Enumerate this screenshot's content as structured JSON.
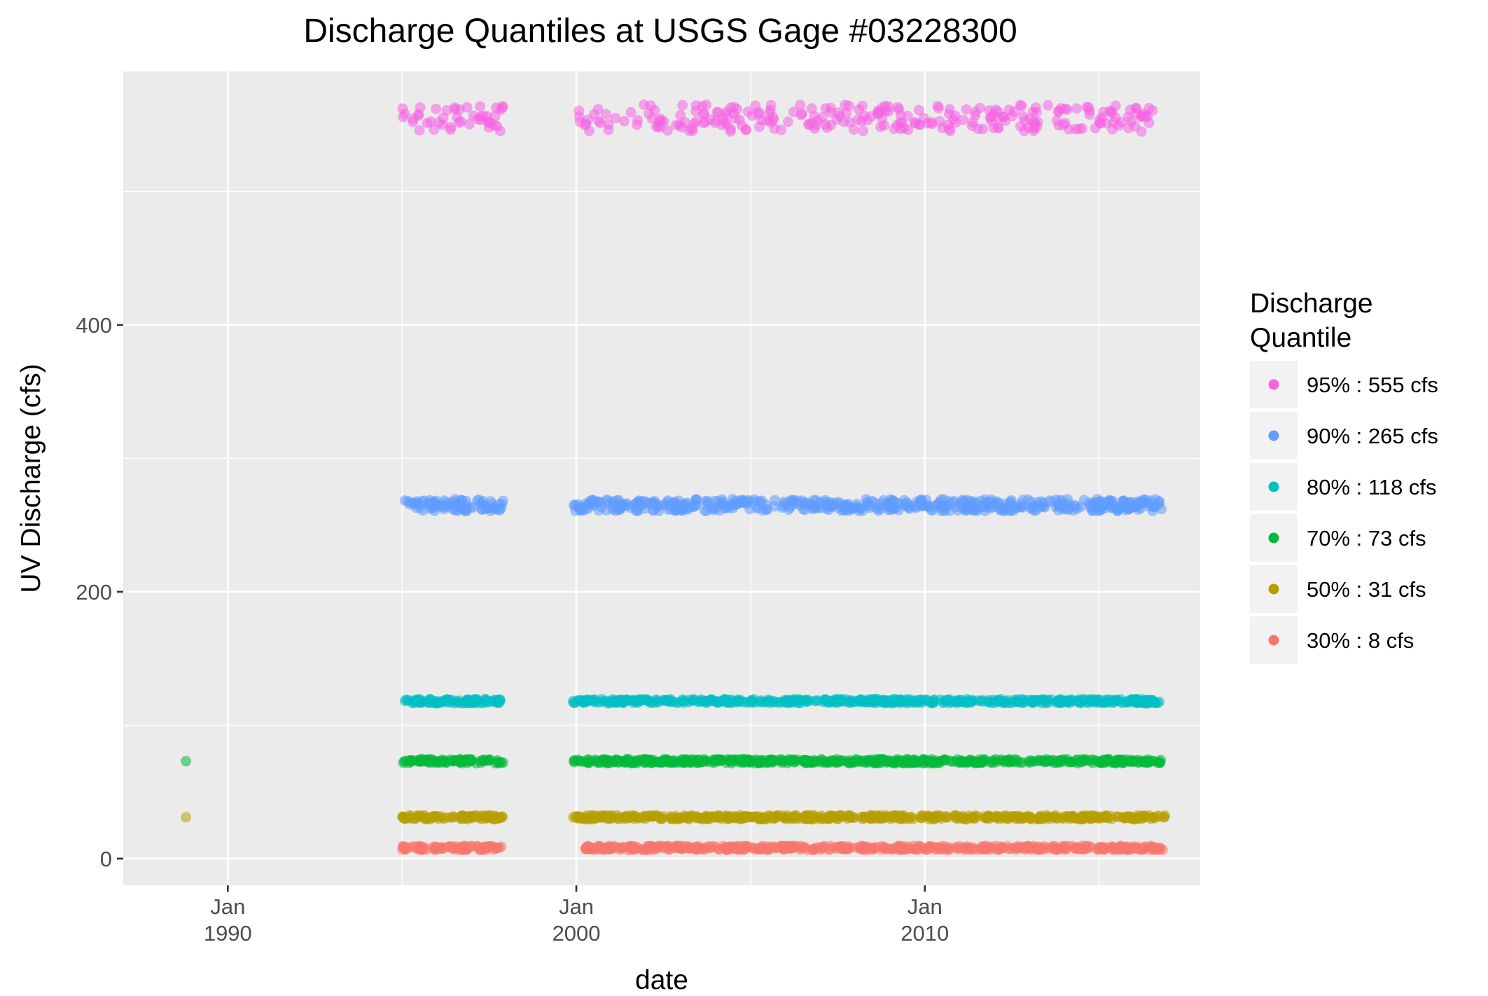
{
  "chart_data": {
    "type": "scatter",
    "title": "Discharge Quantiles at USGS Gage #03228300",
    "xlabel": "date",
    "ylabel": "UV Discharge (cfs)",
    "x_ticks": [
      {
        "line1": "Jan",
        "line2": "1990",
        "value": 1990.0
      },
      {
        "line1": "Jan",
        "line2": "2000",
        "value": 2000.0
      },
      {
        "line1": "Jan",
        "line2": "2010",
        "value": 2010.0
      }
    ],
    "y_ticks": [
      0,
      200,
      400
    ],
    "xlim": [
      1987.0,
      2017.9
    ],
    "ylim": [
      -20,
      590
    ],
    "grid": true,
    "legend": {
      "title_line1": "Discharge",
      "title_line2": "Quantile",
      "position": "right"
    },
    "series": [
      {
        "name": "95% : 555  cfs",
        "color": "#F564E3",
        "value": 555,
        "x_ranges": [
          [
            1995.0,
            1997.9
          ],
          [
            1999.9,
            2016.6
          ]
        ],
        "outliers": []
      },
      {
        "name": "90% : 265  cfs",
        "color": "#619CFF",
        "value": 265,
        "x_ranges": [
          [
            1995.0,
            1997.9
          ],
          [
            1999.9,
            2016.8
          ]
        ],
        "outliers": []
      },
      {
        "name": "80% : 118  cfs",
        "color": "#00BFC4",
        "value": 118,
        "x_ranges": [
          [
            1995.0,
            1997.9
          ],
          [
            1999.9,
            2016.8
          ]
        ],
        "outliers": []
      },
      {
        "name": "70% : 73  cfs",
        "color": "#00BA38",
        "value": 73,
        "x_ranges": [
          [
            1995.0,
            1997.9
          ],
          [
            1999.9,
            2016.8
          ]
        ],
        "outliers": [
          {
            "x": 1988.8,
            "y": 73
          }
        ]
      },
      {
        "name": "50% : 31  cfs",
        "color": "#B79F00",
        "value": 31,
        "x_ranges": [
          [
            1995.0,
            1997.9
          ],
          [
            1999.9,
            2016.9
          ]
        ],
        "outliers": [
          {
            "x": 1988.8,
            "y": 31
          }
        ]
      },
      {
        "name": "30% : 8  cfs",
        "color": "#F8766D",
        "value": 8,
        "x_ranges": [
          [
            1995.0,
            1997.9
          ],
          [
            2000.2,
            2016.9
          ]
        ],
        "outliers": []
      }
    ]
  }
}
